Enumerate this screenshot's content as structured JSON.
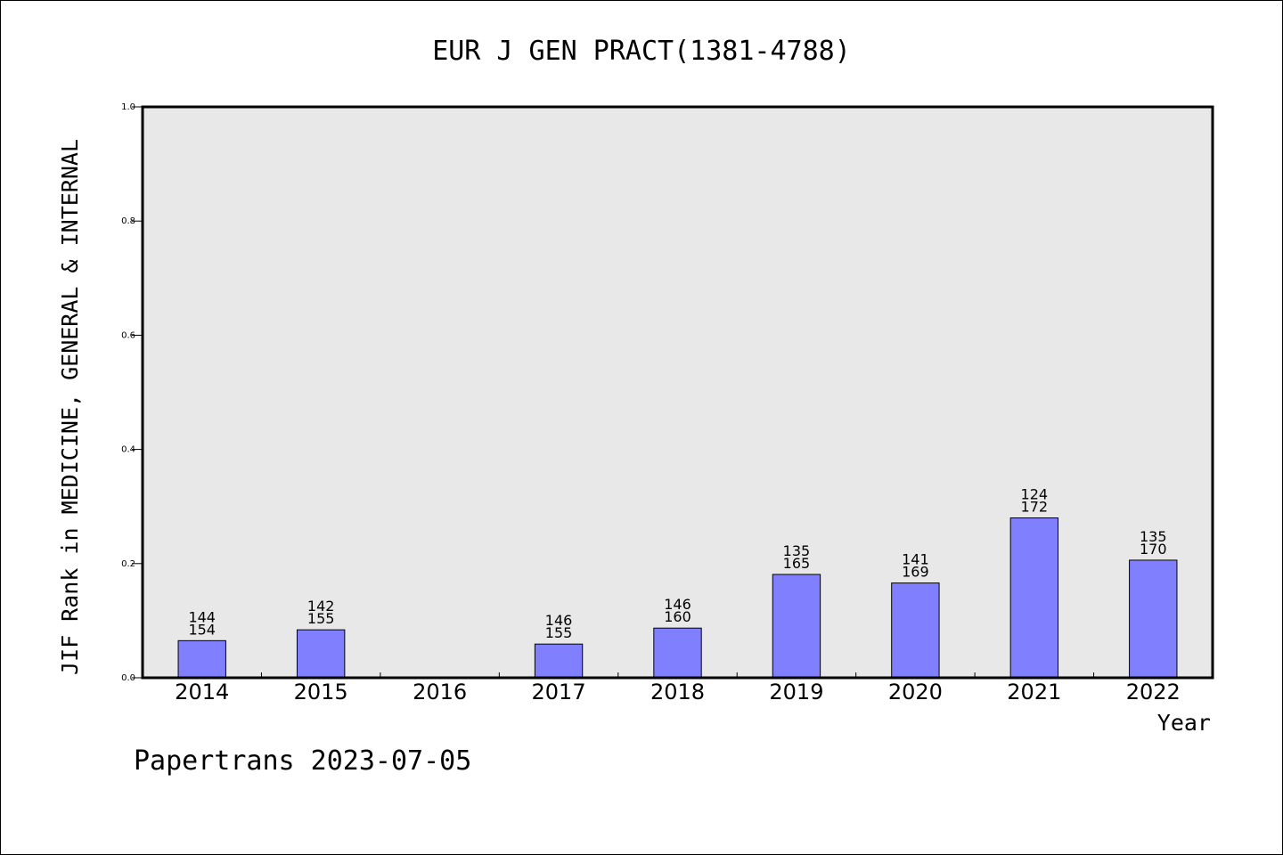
{
  "chart_data": {
    "type": "bar",
    "title": "EUR J GEN PRACT(1381-4788)",
    "xlabel": "Year",
    "ylabel": "JIF Rank in MEDICINE, GENERAL & INTERNAL",
    "ylim": [
      0,
      1.0
    ],
    "yticks": [
      "0.0",
      "0.2",
      "0.4",
      "0.6",
      "0.8",
      "1.0"
    ],
    "grid": false,
    "categories": [
      "2014",
      "2015",
      "2016",
      "2017",
      "2018",
      "2019",
      "2020",
      "2021",
      "2022"
    ],
    "values": [
      0.065,
      0.084,
      null,
      0.059,
      0.087,
      0.181,
      0.166,
      0.28,
      0.206
    ],
    "rank_labels": [
      {
        "rank": "144",
        "total": "154"
      },
      {
        "rank": "142",
        "total": "155"
      },
      null,
      {
        "rank": "146",
        "total": "155"
      },
      {
        "rank": "146",
        "total": "160"
      },
      {
        "rank": "135",
        "total": "165"
      },
      {
        "rank": "141",
        "total": "169"
      },
      {
        "rank": "124",
        "total": "172"
      },
      {
        "rank": "135",
        "total": "170"
      }
    ],
    "bar_color": "#8080ff",
    "plot_background": "#e8e8e8"
  },
  "footer": {
    "text": "Papertrans 2023-07-05"
  }
}
